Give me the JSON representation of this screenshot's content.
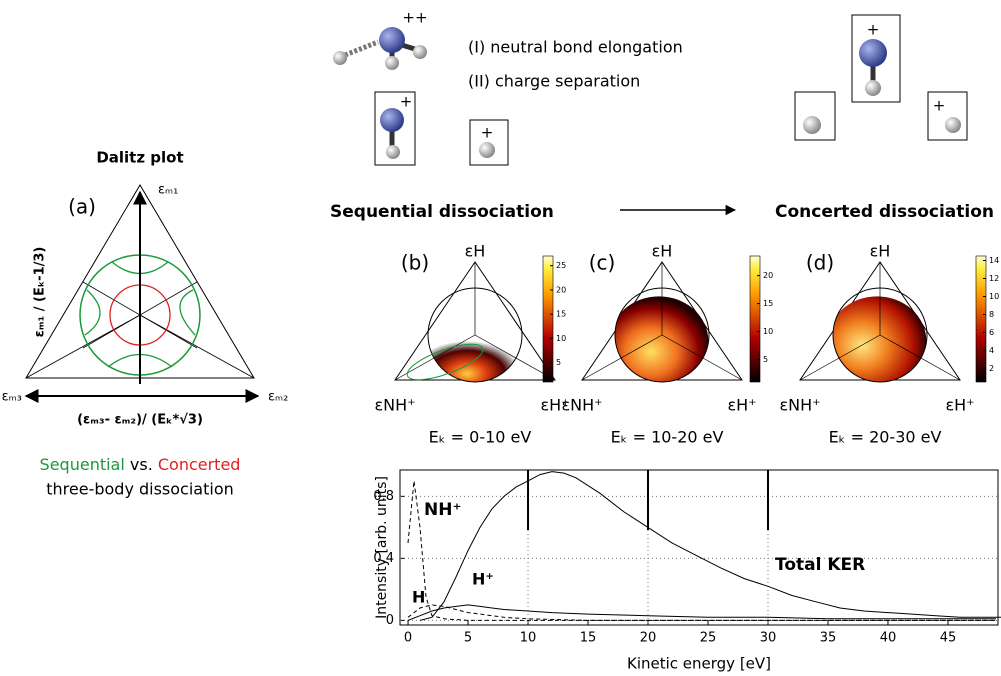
{
  "dalitz": {
    "title": "Dalitz plot",
    "panel_label": "(a)",
    "top_label": "εₘ₁",
    "left_label": "εₘ₃",
    "right_label": "εₘ₂",
    "y_label": "εₘ₁ / (Eₖ-1/3)",
    "x_label": "(εₘ₃- εₘ₂)/ (Eₖ*√3)",
    "caption_sequential": "Sequential",
    "caption_vs": " vs. ",
    "caption_concerted": "Concerted",
    "caption_line2": "three-body dissociation"
  },
  "scheme": {
    "charge_double": "++",
    "charge_single": "+",
    "step1": "(I)  neutral bond elongation",
    "step2": "(II)  charge separation",
    "sequential": "Sequential dissociation",
    "concerted": "Concerted dissociation"
  },
  "panels": [
    {
      "label": "(b)",
      "top": "εH",
      "left": "εNH⁺",
      "right": "εH⁺",
      "energy": "Eₖ = 0-10 eV",
      "colorbar_lim": [
        1,
        27
      ],
      "colorbar_ticks": [
        5,
        10,
        15,
        20,
        25
      ]
    },
    {
      "label": "(c)",
      "top": "εH",
      "left": "εNH⁺",
      "right": "εH⁺",
      "energy": "Eₖ = 10-20 eV",
      "colorbar_lim": [
        1,
        23.5
      ],
      "colorbar_ticks": [
        5,
        10,
        15,
        20
      ]
    },
    {
      "label": "(d)",
      "top": "εH",
      "left": "εNH⁺",
      "right": "εH⁺",
      "energy": "Eₖ = 20-30 eV",
      "colorbar_lim": [
        0.5,
        14.5
      ],
      "colorbar_ticks": [
        2,
        4,
        6,
        8,
        10,
        12,
        14
      ]
    }
  ],
  "chart_data": {
    "type": "line",
    "x_label": "Kinetic energy [eV]",
    "y_label": "Intensity [arb. units]",
    "xlim": [
      -0.67,
      49.17
    ],
    "ylim": [
      -0.03,
      0.97
    ],
    "xticks": [
      0,
      5,
      10,
      15,
      20,
      25,
      30,
      35,
      40,
      45
    ],
    "yticks": [
      0,
      0.4,
      0.8
    ],
    "markers": [
      10,
      20,
      30
    ],
    "grid": true,
    "series": [
      {
        "name": "NH⁺",
        "color": "#000",
        "style": "dashed",
        "x": [
          0,
          0.5,
          1,
          1.5,
          2,
          3,
          5,
          10,
          20,
          30,
          40,
          49
        ],
        "values": [
          0.5,
          0.9,
          0.6,
          0.15,
          0.03,
          0.01,
          0,
          0,
          0,
          0,
          0,
          0
        ]
      },
      {
        "name": "H",
        "color": "#000",
        "style": "dashed",
        "x": [
          0,
          0.5,
          1,
          2,
          3,
          4,
          5,
          6,
          8,
          10,
          15,
          20,
          49
        ],
        "values": [
          0.02,
          0.05,
          0.08,
          0.1,
          0.09,
          0.07,
          0.05,
          0.04,
          0.02,
          0.01,
          0,
          0,
          0
        ]
      },
      {
        "name": "H⁺",
        "color": "#000",
        "style": "solid",
        "x": [
          0,
          1,
          2,
          3,
          4,
          5,
          6,
          7,
          8,
          10,
          12,
          15,
          20,
          25,
          30,
          35,
          40,
          45,
          49
        ],
        "values": [
          0,
          0.03,
          0.06,
          0.08,
          0.09,
          0.1,
          0.09,
          0.08,
          0.07,
          0.06,
          0.05,
          0.04,
          0.03,
          0.02,
          0.02,
          0.01,
          0.01,
          0.01,
          0.01
        ]
      },
      {
        "name": "Total KER",
        "color": "#000",
        "style": "solid",
        "x": [
          1,
          2,
          3,
          4,
          5,
          6,
          7,
          8,
          9,
          10,
          11,
          12,
          13,
          14,
          16,
          18,
          20,
          22,
          24,
          26,
          28,
          30,
          32,
          34,
          36,
          38,
          40,
          42,
          44,
          46,
          48,
          49.5
        ],
        "values": [
          0,
          0.02,
          0.12,
          0.28,
          0.45,
          0.6,
          0.72,
          0.8,
          0.86,
          0.9,
          0.94,
          0.96,
          0.95,
          0.92,
          0.82,
          0.7,
          0.6,
          0.5,
          0.42,
          0.34,
          0.27,
          0.22,
          0.16,
          0.12,
          0.08,
          0.06,
          0.05,
          0.04,
          0.03,
          0.02,
          0.02,
          0.02
        ]
      }
    ]
  }
}
